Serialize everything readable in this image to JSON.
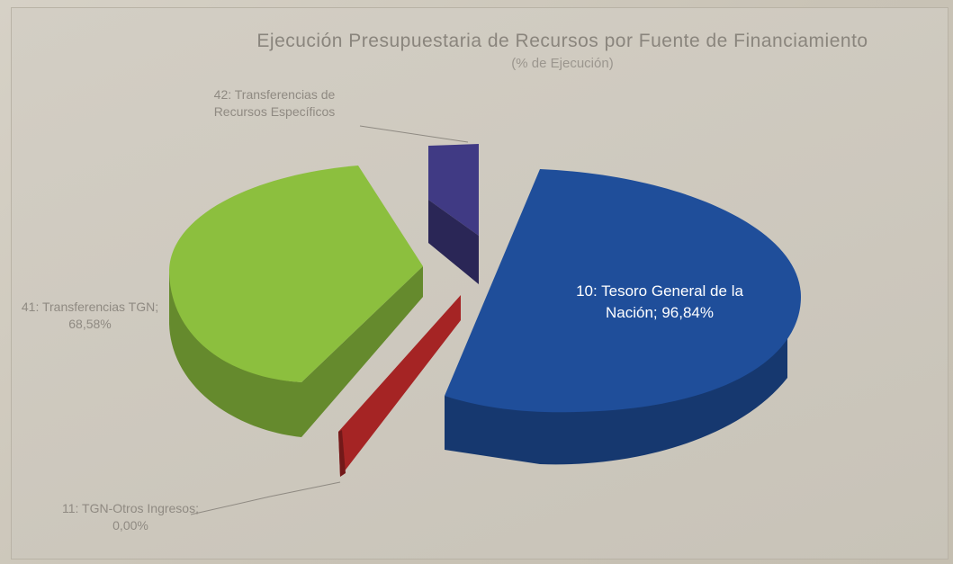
{
  "chart_data": {
    "type": "pie",
    "title": "Ejecución Presupuestaria de Recursos por Fuente de Financiamiento",
    "subtitle": "(% de Ejecución)",
    "series": [
      {
        "name": "10: Tesoro General de la Nación",
        "value_label": "96,84%",
        "value": 96.84,
        "color": "#1f4e9a"
      },
      {
        "name": "11: TGN-Otros Ingresos",
        "value_label": "0,00%",
        "value": 0.0,
        "color": "#a52424"
      },
      {
        "name": "41: Transferencias TGN",
        "value_label": "68,58%",
        "value": 68.58,
        "color": "#8cbf3e"
      },
      {
        "name": "42: Transferencias de Recursos Específicos",
        "value_label": "",
        "value": null,
        "color": "#403a84"
      }
    ],
    "labels": {
      "tgn": "10: Tesoro General de la Nación; 96,84%",
      "otros": "11: TGN-Otros Ingresos; 0,00%",
      "transf_tgn": "41: Transferencias TGN; 68,58%",
      "transf_rec": "42: Transferencias de Recursos Específicos"
    }
  }
}
